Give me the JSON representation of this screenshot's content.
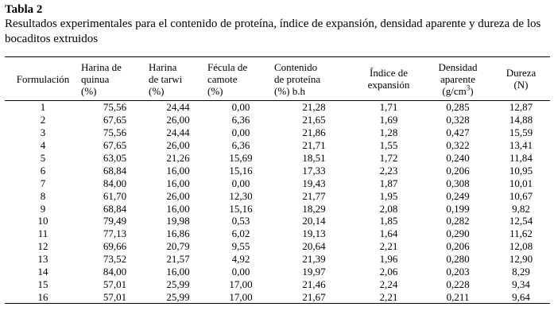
{
  "caption": {
    "title": "Tabla 2",
    "text": "Resultados experimentales para el contenido de proteína, índice de expansión, densidad aparente y dureza de los bocaditos extruidos"
  },
  "table": {
    "headers": {
      "formulacion": "Formulación",
      "quinua": [
        "Harina de",
        "quinua",
        "(%)"
      ],
      "tarwi": [
        "Harina",
        "de tarwi",
        "(%)"
      ],
      "camote": [
        "Fécula de",
        "camote",
        "(%)"
      ],
      "proteina": [
        "Contenido",
        "de proteína",
        "(%) b.h"
      ],
      "expansion": [
        "Índice de",
        "expansión"
      ],
      "densidad": [
        "Densidad",
        "aparente",
        "(g/cm",
        "3",
        ")"
      ],
      "dureza": [
        "Dureza",
        "(N)"
      ]
    },
    "rows": [
      [
        "1",
        "75,56",
        "24,44",
        "0,00",
        "21,28",
        "1,71",
        "0,285",
        "12,87"
      ],
      [
        "2",
        "67,65",
        "26,00",
        "6,36",
        "21,65",
        "1,69",
        "0,328",
        "14,88"
      ],
      [
        "3",
        "75,56",
        "24,44",
        "0,00",
        "21,86",
        "1,28",
        "0,427",
        "15,59"
      ],
      [
        "4",
        "67,65",
        "26,00",
        "6,36",
        "21,71",
        "1,55",
        "0,322",
        "13,41"
      ],
      [
        "5",
        "63,05",
        "21,26",
        "15,69",
        "18,51",
        "1,72",
        "0,240",
        "11,84"
      ],
      [
        "6",
        "68,84",
        "16,00",
        "15,16",
        "17,33",
        "2,23",
        "0,206",
        "10,95"
      ],
      [
        "7",
        "84,00",
        "16,00",
        "0,00",
        "19,43",
        "1,87",
        "0,308",
        "10,01"
      ],
      [
        "8",
        "61,70",
        "26,00",
        "12,30",
        "21,77",
        "1,95",
        "0,249",
        "10,67"
      ],
      [
        "9",
        "68,84",
        "16,00",
        "15,16",
        "18,29",
        "2,08",
        "0,199",
        "9,82"
      ],
      [
        "10",
        "79,49",
        "19,98",
        "0,53",
        "20,14",
        "1,85",
        "0,282",
        "12,54"
      ],
      [
        "11",
        "77,13",
        "16,86",
        "6,02",
        "19,13",
        "1,64",
        "0,290",
        "11,62"
      ],
      [
        "12",
        "69,66",
        "20,79",
        "9,55",
        "20,64",
        "2,21",
        "0,206",
        "12,08"
      ],
      [
        "13",
        "73,52",
        "21,57",
        "4,92",
        "21,39",
        "1,96",
        "0,280",
        "12,90"
      ],
      [
        "14",
        "84,00",
        "16,00",
        "0,00",
        "19,97",
        "2,06",
        "0,203",
        "8,29"
      ],
      [
        "15",
        "57,01",
        "25,99",
        "17,00",
        "21,46",
        "2,24",
        "0,228",
        "9,34"
      ],
      [
        "16",
        "57,01",
        "25,99",
        "17,00",
        "21,67",
        "2,21",
        "0,211",
        "9,64"
      ]
    ]
  }
}
